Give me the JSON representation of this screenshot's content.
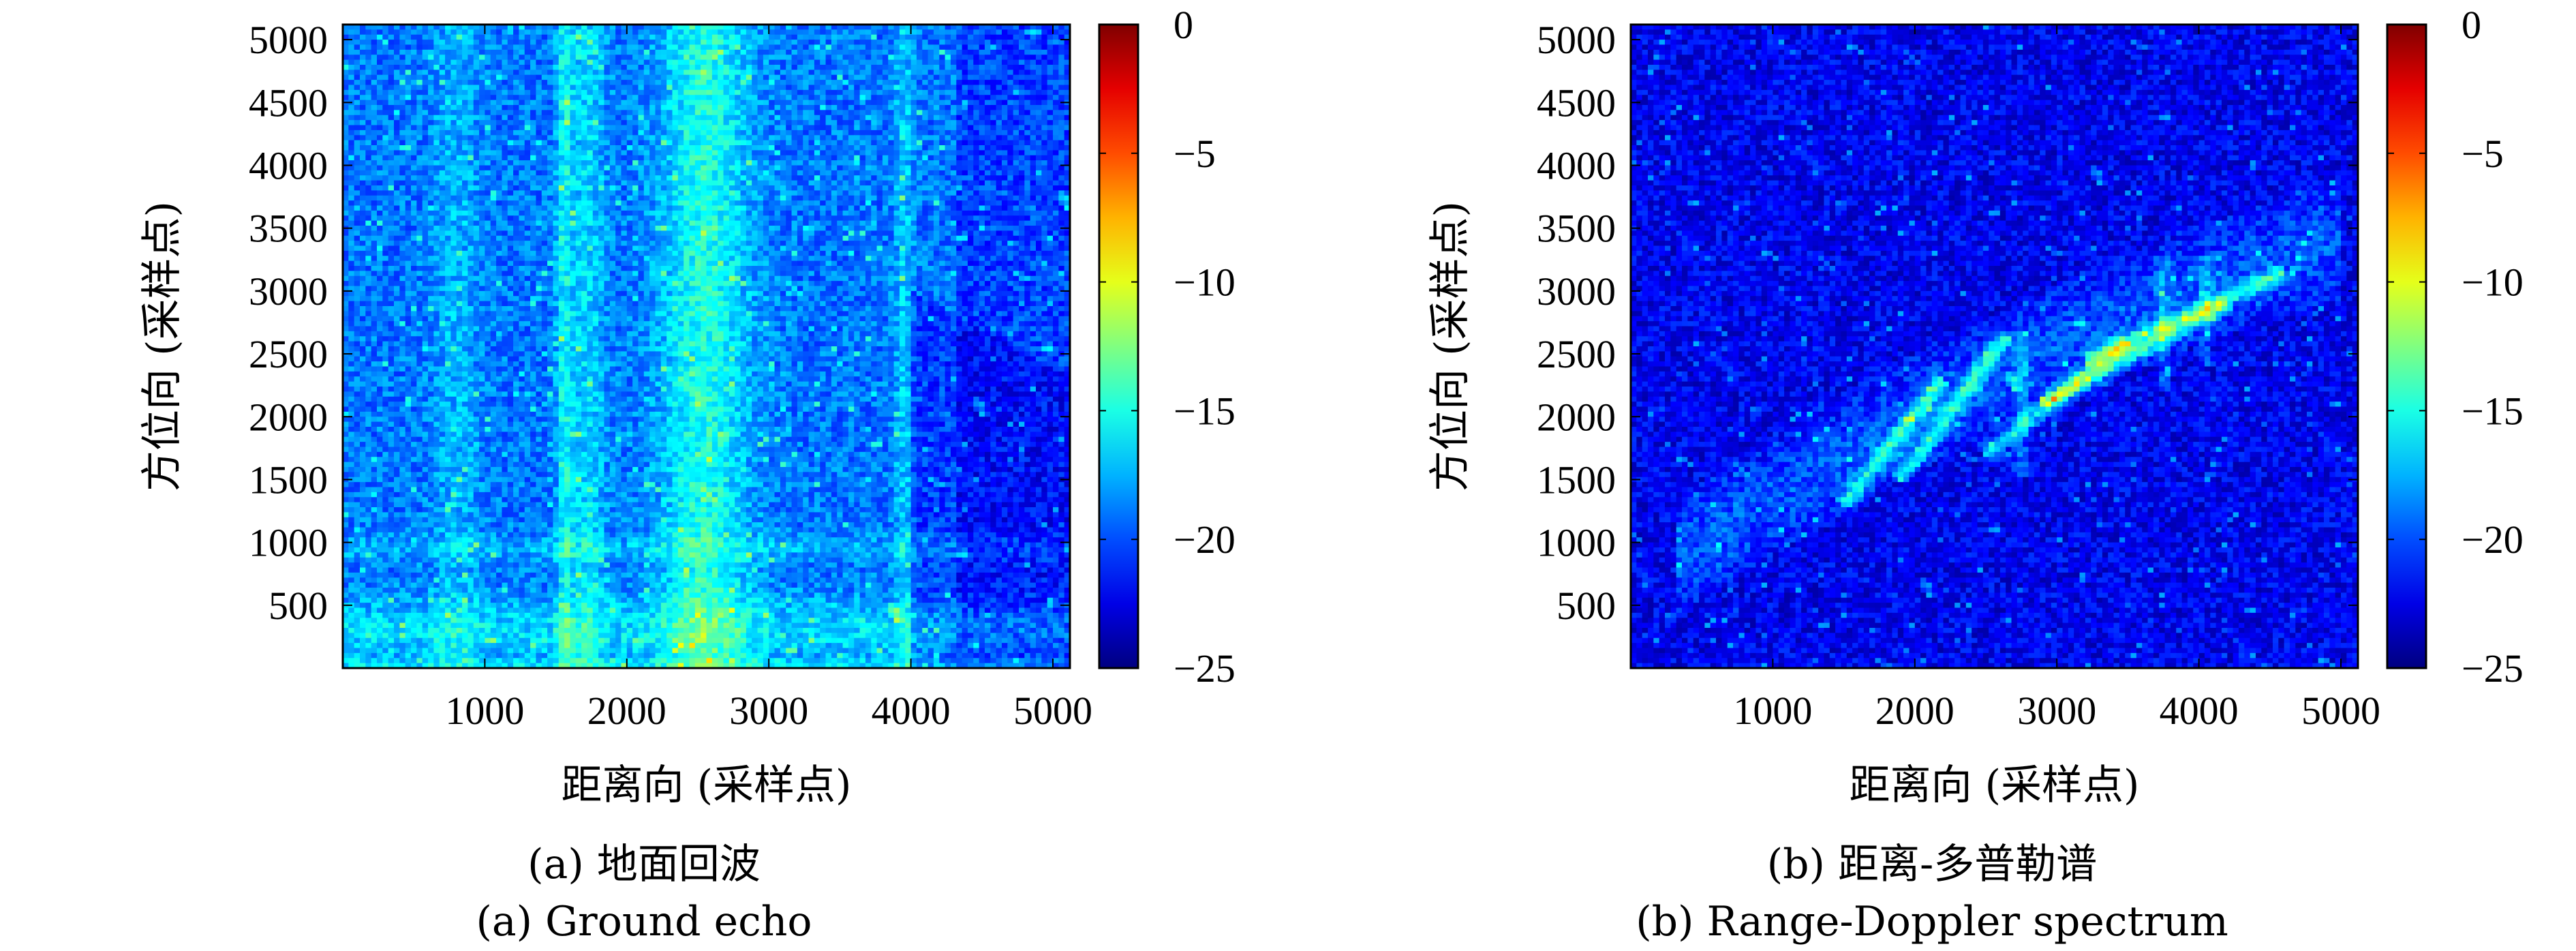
{
  "chart_data": [
    {
      "type": "heatmap",
      "xlabel": "距离向 (采样点)",
      "ylabel": "方位向 (采样点)",
      "xlim": [
        0,
        5120
      ],
      "ylim": [
        0,
        5120
      ],
      "xticks": [
        1000,
        2000,
        3000,
        4000,
        5000
      ],
      "yticks": [
        500,
        1000,
        1500,
        2000,
        2500,
        3000,
        3500,
        4000,
        4500,
        5000
      ],
      "colorbar": {
        "range": [
          -25,
          0
        ],
        "ticks": [
          0,
          -5,
          -10,
          -15,
          -20,
          -25
        ],
        "tick_labels": [
          "0",
          "−5",
          "−10",
          "−15",
          "−20",
          "−25"
        ],
        "colormap": "jet"
      },
      "caption_cn": "(a) 地面回波",
      "caption_en": "(a) Ground echo"
    },
    {
      "type": "heatmap",
      "xlabel": "距离向 (采样点)",
      "ylabel": "方位向 (采样点)",
      "xlim": [
        0,
        5120
      ],
      "ylim": [
        0,
        5120
      ],
      "xticks": [
        1000,
        2000,
        3000,
        4000,
        5000
      ],
      "yticks": [
        500,
        1000,
        1500,
        2000,
        2500,
        3000,
        3500,
        4000,
        4500,
        5000
      ],
      "colorbar": {
        "range": [
          -25,
          0
        ],
        "ticks": [
          0,
          -5,
          -10,
          -15,
          -20,
          -25
        ],
        "tick_labels": [
          "0",
          "−5",
          "−10",
          "−15",
          "−20",
          "−25"
        ],
        "colormap": "jet"
      },
      "caption_cn": "(b) 距离-多普勒谱",
      "caption_en": "(b) Range-Doppler spectrum"
    }
  ]
}
